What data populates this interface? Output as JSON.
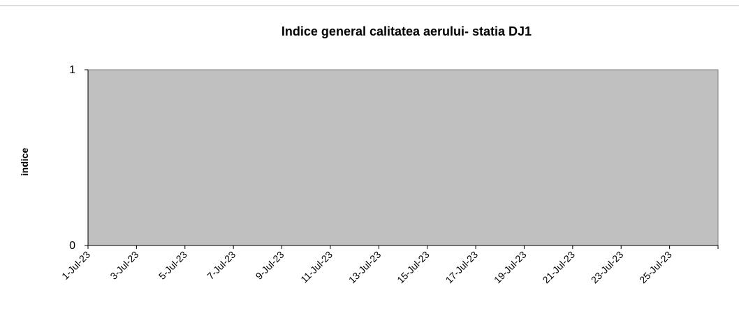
{
  "chart_data": {
    "type": "line",
    "title": "Indice general calitatea aerului-  statia DJ1",
    "y_label": "indice",
    "categories": [
      "1-Jul-23",
      "3-Jul-23",
      "5-Jul-23",
      "7-Jul-23",
      "9-Jul-23",
      "11-Jul-23",
      "13-Jul-23",
      "15-Jul-23",
      "17-Jul-23",
      "19-Jul-23",
      "21-Jul-23",
      "23-Jul-23",
      "25-Jul-23"
    ],
    "series": [],
    "ylim": [
      0,
      1
    ],
    "yticks": [
      0,
      1
    ],
    "plot_color": "#c0c0c0"
  }
}
